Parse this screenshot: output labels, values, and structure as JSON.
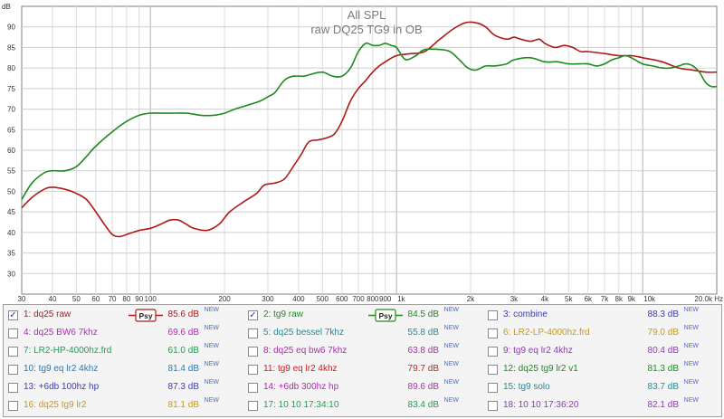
{
  "chart_data": {
    "type": "line",
    "title": "All SPL",
    "subtitle": "raw DQ25 TG9 in OB",
    "ylabel": "dB",
    "ylim": [
      25,
      95
    ],
    "yticks": [
      "30",
      "35",
      "40",
      "45",
      "50",
      "55",
      "60",
      "65",
      "70",
      "75",
      "80",
      "85",
      "90"
    ],
    "xscale": "log",
    "xlim": [
      30,
      20000
    ],
    "xticks": [
      {
        "v": 30,
        "label": "30"
      },
      {
        "v": 40,
        "label": "40"
      },
      {
        "v": 50,
        "label": "50"
      },
      {
        "v": 60,
        "label": "60"
      },
      {
        "v": 70,
        "label": "70"
      },
      {
        "v": 80,
        "label": "80"
      },
      {
        "v": 90,
        "label": "90"
      },
      {
        "v": 100,
        "label": "100"
      },
      {
        "v": 200,
        "label": "200"
      },
      {
        "v": 300,
        "label": "300"
      },
      {
        "v": 400,
        "label": "400"
      },
      {
        "v": 500,
        "label": "500"
      },
      {
        "v": 600,
        "label": "600"
      },
      {
        "v": 700,
        "label": "700"
      },
      {
        "v": 800,
        "label": "800"
      },
      {
        "v": 900,
        "label": "900"
      },
      {
        "v": 1000,
        "label": "1k"
      },
      {
        "v": 2000,
        "label": "2k"
      },
      {
        "v": 3000,
        "label": "3k"
      },
      {
        "v": 4000,
        "label": "4k"
      },
      {
        "v": 5000,
        "label": "5k"
      },
      {
        "v": 6000,
        "label": "6k"
      },
      {
        "v": 7000,
        "label": "7k"
      },
      {
        "v": 8000,
        "label": "8k"
      },
      {
        "v": 9000,
        "label": "9k"
      },
      {
        "v": 10000,
        "label": "10k"
      },
      {
        "v": 20000,
        "label": "20.0k Hz"
      }
    ],
    "grid": true,
    "series": [
      {
        "name": "dq25 raw",
        "color": "#b01818",
        "points": [
          [
            30,
            46
          ],
          [
            33,
            48.5
          ],
          [
            37,
            50.5
          ],
          [
            40,
            51
          ],
          [
            45,
            50.5
          ],
          [
            50,
            49.5
          ],
          [
            55,
            48
          ],
          [
            60,
            45
          ],
          [
            65,
            42
          ],
          [
            70,
            39.5
          ],
          [
            75,
            39
          ],
          [
            80,
            39.5
          ],
          [
            90,
            40.5
          ],
          [
            100,
            41
          ],
          [
            110,
            42
          ],
          [
            120,
            43
          ],
          [
            130,
            43
          ],
          [
            140,
            42
          ],
          [
            150,
            41
          ],
          [
            170,
            40.5
          ],
          [
            190,
            42
          ],
          [
            210,
            45
          ],
          [
            240,
            47.5
          ],
          [
            270,
            49.5
          ],
          [
            290,
            51.5
          ],
          [
            320,
            52
          ],
          [
            350,
            53
          ],
          [
            380,
            56
          ],
          [
            410,
            59
          ],
          [
            440,
            62
          ],
          [
            480,
            62.5
          ],
          [
            520,
            63
          ],
          [
            560,
            64
          ],
          [
            600,
            67
          ],
          [
            650,
            72
          ],
          [
            700,
            75
          ],
          [
            750,
            77
          ],
          [
            800,
            79
          ],
          [
            850,
            80.5
          ],
          [
            900,
            81.5
          ],
          [
            1000,
            83
          ],
          [
            1150,
            83.5
          ],
          [
            1300,
            84
          ],
          [
            1500,
            87
          ],
          [
            1700,
            89.5
          ],
          [
            1900,
            91
          ],
          [
            2100,
            91
          ],
          [
            2300,
            90
          ],
          [
            2500,
            88
          ],
          [
            2800,
            87
          ],
          [
            3000,
            87.5
          ],
          [
            3200,
            87
          ],
          [
            3500,
            86.5
          ],
          [
            3800,
            87
          ],
          [
            4000,
            86
          ],
          [
            4400,
            85
          ],
          [
            4800,
            85.5
          ],
          [
            5200,
            85
          ],
          [
            5600,
            84
          ],
          [
            6000,
            84
          ],
          [
            7000,
            83.5
          ],
          [
            8000,
            83
          ],
          [
            9000,
            83
          ],
          [
            10000,
            82.5
          ],
          [
            12000,
            81.5
          ],
          [
            14000,
            80
          ],
          [
            16000,
            79.5
          ],
          [
            18000,
            79
          ],
          [
            20000,
            79
          ]
        ]
      },
      {
        "name": "tg9 raw",
        "color": "#1e8a1e",
        "points": [
          [
            30,
            48
          ],
          [
            33,
            52
          ],
          [
            37,
            54.5
          ],
          [
            40,
            55
          ],
          [
            45,
            55
          ],
          [
            50,
            56
          ],
          [
            55,
            58.5
          ],
          [
            60,
            61
          ],
          [
            70,
            64.5
          ],
          [
            80,
            67
          ],
          [
            90,
            68.5
          ],
          [
            100,
            69
          ],
          [
            120,
            69
          ],
          [
            140,
            69
          ],
          [
            160,
            68.5
          ],
          [
            180,
            68.5
          ],
          [
            200,
            69
          ],
          [
            220,
            70
          ],
          [
            250,
            71
          ],
          [
            280,
            72
          ],
          [
            300,
            73
          ],
          [
            320,
            74
          ],
          [
            350,
            77
          ],
          [
            380,
            78
          ],
          [
            420,
            78
          ],
          [
            450,
            78.5
          ],
          [
            500,
            79
          ],
          [
            550,
            78
          ],
          [
            600,
            78
          ],
          [
            650,
            80
          ],
          [
            700,
            84
          ],
          [
            750,
            86
          ],
          [
            800,
            85.5
          ],
          [
            850,
            85.5
          ],
          [
            900,
            86
          ],
          [
            950,
            85.5
          ],
          [
            1000,
            85
          ],
          [
            1050,
            83
          ],
          [
            1100,
            82
          ],
          [
            1200,
            83
          ],
          [
            1300,
            84.5
          ],
          [
            1500,
            84.5
          ],
          [
            1650,
            84
          ],
          [
            1800,
            82
          ],
          [
            1950,
            80
          ],
          [
            2100,
            79.5
          ],
          [
            2300,
            80.5
          ],
          [
            2500,
            80.5
          ],
          [
            2800,
            81
          ],
          [
            3000,
            82
          ],
          [
            3500,
            82.5
          ],
          [
            4000,
            81.5
          ],
          [
            4500,
            81.5
          ],
          [
            5000,
            81
          ],
          [
            5500,
            81
          ],
          [
            6000,
            81
          ],
          [
            6500,
            80.5
          ],
          [
            7000,
            81
          ],
          [
            7500,
            82
          ],
          [
            8000,
            82.5
          ],
          [
            8500,
            83
          ],
          [
            9000,
            82.5
          ],
          [
            10000,
            81
          ],
          [
            11000,
            80.5
          ],
          [
            12000,
            80
          ],
          [
            13000,
            80
          ],
          [
            14000,
            80.5
          ],
          [
            15000,
            81
          ],
          [
            16000,
            80.5
          ],
          [
            17000,
            79
          ],
          [
            18000,
            76.5
          ],
          [
            19000,
            75.5
          ],
          [
            20000,
            75.5
          ]
        ]
      }
    ]
  },
  "legend": [
    [
      {
        "num": "1:",
        "name": "dq25 raw",
        "value": "85.6 dB",
        "checked": true,
        "color": "#b01818",
        "psy": "Psy"
      },
      {
        "num": "2:",
        "name": "tg9 raw",
        "value": "84.5 dB",
        "checked": true,
        "color": "#1e8a1e",
        "psy": "Psy"
      },
      {
        "num": "3:",
        "name": "combine",
        "value": "88.3 dB",
        "checked": false,
        "color": "#3c3cb4"
      }
    ],
    [
      {
        "num": "4:",
        "name": "dq25 BW6 7khz",
        "value": "69.6 dB",
        "checked": false,
        "color": "#b428b4"
      },
      {
        "num": "5:",
        "name": "dq25 bessel 7khz",
        "value": "55.8 dB",
        "checked": false,
        "color": "#1e8c9c"
      },
      {
        "num": "6:",
        "name": "LR2-LP-4000hz.frd",
        "value": "79.0 dB",
        "checked": false,
        "color": "#c8961e"
      }
    ],
    [
      {
        "num": "7:",
        "name": "LR2-HP-4000hz.frd",
        "value": "61.0 dB",
        "checked": false,
        "color": "#1ea050"
      },
      {
        "num": "8:",
        "name": "dq25 eq bw6 7khz",
        "value": "63.8 dB",
        "checked": false,
        "color": "#b428b4"
      },
      {
        "num": "9:",
        "name": "tg9 eq lr2 4khz",
        "value": "80.4 dB",
        "checked": false,
        "color": "#8c3cb4"
      }
    ],
    [
      {
        "num": "10:",
        "name": "tg9 eq lr2 4khz",
        "value": "81.4 dB",
        "checked": false,
        "color": "#2878b4"
      },
      {
        "num": "11:",
        "name": "tg9 eq lr2 4khz",
        "value": "79.7 dB",
        "checked": false,
        "color": "#c81e1e"
      },
      {
        "num": "12:",
        "name": "dq25 tg9 lr2 v1",
        "value": "81.3 dB",
        "checked": false,
        "color": "#1e8a1e"
      }
    ],
    [
      {
        "num": "13:",
        "name": "+6db 100hz hp",
        "value": "87.3 dB",
        "checked": false,
        "color": "#3c3cb4"
      },
      {
        "num": "14:",
        "name": "+6db 300hz hp",
        "value": "89.6 dB",
        "checked": false,
        "color": "#b428b4"
      },
      {
        "num": "15:",
        "name": "tg9 solo",
        "value": "83.7 dB",
        "checked": false,
        "color": "#1e8c9c"
      }
    ],
    [
      {
        "num": "16:",
        "name": "dq25 tg9 lr2",
        "value": "81.1 dB",
        "checked": false,
        "color": "#c8961e"
      },
      {
        "num": "17:",
        "name": "10 10 17:34:10",
        "value": "83.4 dB",
        "checked": false,
        "color": "#1ea050"
      },
      {
        "num": "18:",
        "name": "10 10 17:36:20",
        "value": "82.1 dB",
        "checked": false,
        "color": "#8c3cb4"
      }
    ]
  ],
  "legend_suffix": "NEW"
}
